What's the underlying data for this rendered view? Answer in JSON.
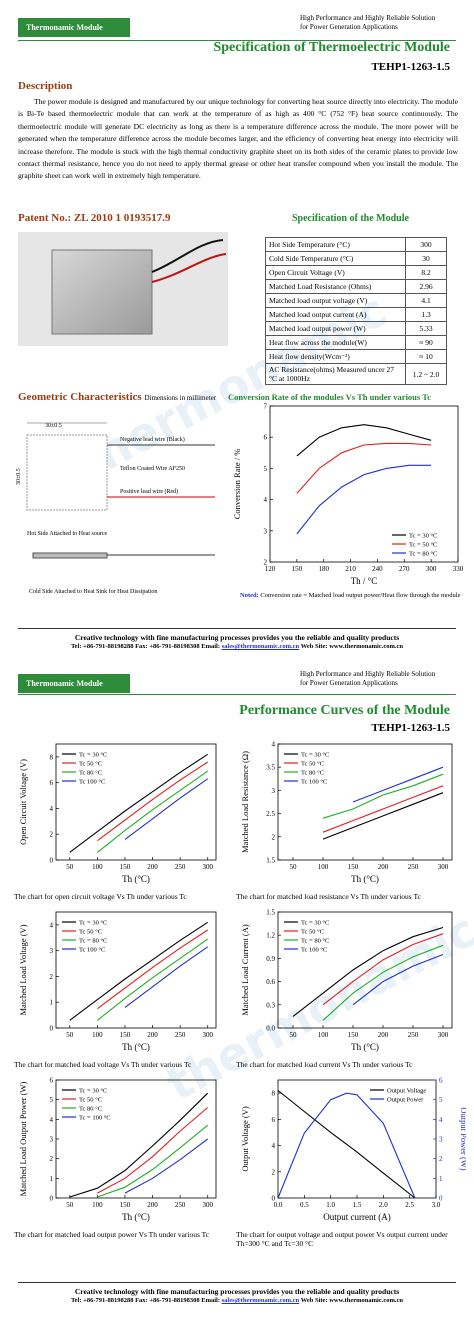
{
  "header": {
    "badge": "Thermonamic Module",
    "tagline_1": "High Performance and Highly Reliable Solution",
    "tagline_2": "for Power Generation Applications"
  },
  "watermark": "thermonamic",
  "page1": {
    "title": "Specification of Thermoelectric Module",
    "model": "TEHP1-1263-1.5",
    "description_heading": "Description",
    "description": "The power module is designed and manufactured by our unique technology for converting heat source directly into electricity. The module is Bi-Te based thermoelectric module that can work at the temperature of as high as 400 °C (752 °F) heat source continuously. The thermoelectric module will generate DC electricity as long as there is a temperature difference across the module. The more power will be generated when the temperature difference across the module becomes larger, and the efficiency of converting heat energy into electricity will increase therefore. The module is stuck with the high thermal conductivity graphite sheet on its both sides of the ceramic plates to provide low contact thermal resistance, hence you do not need to apply thermal grease or other heat transfer compound when you install the module. The graphite sheet can work well in extremely high temperature.",
    "patent": "Patent No.: ZL 2010 1 0193517.9",
    "spec_heading": "Specification of the Module",
    "spec_table": [
      [
        "Hot Side Temperature (°C)",
        "300"
      ],
      [
        "Cold Side Temperature (°C)",
        "30"
      ],
      [
        "Open Circuit Voltage (V)",
        "8.2"
      ],
      [
        "Matched Load Resistance (Ohms)",
        "2.96"
      ],
      [
        "Matched load output voltage (V)",
        "4.1"
      ],
      [
        "Matched load output current (A)",
        "1.3"
      ],
      [
        "Matched load output power (W)",
        "5.33"
      ],
      [
        "Heat flow across the module(W)",
        "≈ 90"
      ],
      [
        "Heat flow density(Wcm⁻²)",
        "≈ 10"
      ],
      [
        "AC Resistance(ohms) Measured uncer 27 °C at 1000Hz",
        "1.2 ~ 2.0"
      ]
    ],
    "geometry_heading": "Geometric Characteristics",
    "geometry_unit": "Dimensions in millimeter",
    "geometry": {
      "width": "30±0.5",
      "height": "30±0.5",
      "negative": "Negative lead wire (Black)",
      "wire": "Teflon Coated Wire AF250",
      "positive": "Positive lead wire (Red)",
      "hot": "Hot Side Attached to Heat source",
      "cold": "Cold Side Attached to Heat Sink for Heat Dissipation"
    },
    "note_label": "Noted:",
    "note": "Conversion rate = Matched load output power/Heat flow through the module"
  },
  "footer": {
    "slogan": "Creative technology with fine manufacturing processes provides you the reliable and quality products",
    "contact": "Tel: +86-791-88198288  Fax: +86-791-88198308  Email:",
    "email": "sales@thermonamic.com.cn",
    "web": "Web Site: www.thermonamic.com.cn"
  },
  "page2": {
    "title": "Performance Curves of the Module",
    "model": "TEHP1-1263-1.5"
  },
  "chart_data": [
    {
      "type": "line",
      "title": "Conversion Rate of the modules Vs Th under various Tc",
      "xlabel": "Th / °C",
      "ylabel": "Conversion Rate / %",
      "x": [
        150,
        175,
        200,
        225,
        250,
        275,
        300
      ],
      "xlim": [
        120,
        330
      ],
      "xticks": [
        120,
        150,
        180,
        210,
        240,
        270,
        300,
        330
      ],
      "ylim": [
        2,
        7
      ],
      "yticks": [
        2,
        3,
        4,
        5,
        6,
        7
      ],
      "legend": "lower right",
      "series": [
        {
          "name": "Tc = 30 °C",
          "color": "#000000",
          "values": [
            5.4,
            6.0,
            6.3,
            6.4,
            6.3,
            6.1,
            5.9
          ]
        },
        {
          "name": "Tc = 50 °C",
          "color": "#e02020",
          "values": [
            4.2,
            5.0,
            5.5,
            5.75,
            5.8,
            5.8,
            5.75
          ]
        },
        {
          "name": "Tc = 80 °C",
          "color": "#2030d0",
          "values": [
            2.9,
            3.8,
            4.4,
            4.8,
            5.0,
            5.1,
            5.1
          ]
        }
      ]
    },
    {
      "type": "line",
      "xlabel": "Th (°C)",
      "ylabel": "Open Circuit Voltage (V)",
      "caption": "The chart for open circuit voltage Vs Th under various Tc",
      "x": [
        50,
        100,
        150,
        200,
        250,
        300
      ],
      "xlim": [
        25,
        315
      ],
      "xticks": [
        50,
        100,
        150,
        200,
        250,
        300
      ],
      "ylim": [
        0,
        9
      ],
      "yticks": [
        0,
        2,
        4,
        6,
        8
      ],
      "legend": "upper left",
      "series": [
        {
          "name": "Tc = 30 °C",
          "color": "#000000",
          "values": [
            0.6,
            2.2,
            3.8,
            5.3,
            6.8,
            8.2
          ]
        },
        {
          "name": "Tc   50 °C",
          "color": "#e02020",
          "values": [
            null,
            1.5,
            3.1,
            4.7,
            6.2,
            7.6
          ]
        },
        {
          "name": "Tc   80 °C",
          "color": "#20b020",
          "values": [
            null,
            0.6,
            2.3,
            3.9,
            5.4,
            6.9
          ]
        },
        {
          "name": "Tc   100 °C",
          "color": "#2030d0",
          "values": [
            null,
            null,
            1.6,
            3.2,
            4.8,
            6.3
          ]
        }
      ]
    },
    {
      "type": "line",
      "xlabel": "Th (°C)",
      "ylabel": "Matched Load Resistance (Ω)",
      "caption": "The chart for matched load resistance Vs Th under various Tc",
      "x": [
        50,
        100,
        150,
        200,
        250,
        300
      ],
      "xlim": [
        25,
        315
      ],
      "xticks": [
        50,
        100,
        150,
        200,
        250,
        300
      ],
      "ylim": [
        1.5,
        4.0
      ],
      "yticks": [
        1.5,
        2.0,
        2.5,
        3.0,
        3.5,
        4.0
      ],
      "legend": "upper left",
      "series": [
        {
          "name": "Tc = 30 °C",
          "color": "#000000",
          "values": [
            null,
            1.95,
            2.2,
            2.45,
            2.7,
            2.95
          ]
        },
        {
          "name": "Tc   50 °C",
          "color": "#e02020",
          "values": [
            null,
            2.1,
            2.35,
            2.6,
            2.85,
            3.1
          ]
        },
        {
          "name": "Tc   80 °C",
          "color": "#20b020",
          "values": [
            null,
            2.4,
            2.6,
            2.9,
            3.1,
            3.35
          ]
        },
        {
          "name": "Tc   100 °C",
          "color": "#2030d0",
          "values": [
            null,
            null,
            2.75,
            3.0,
            3.25,
            3.5
          ]
        }
      ]
    },
    {
      "type": "line",
      "xlabel": "Th (°C)",
      "ylabel": "Matched Load Voltage (V)",
      "caption": "The chart for matched load voltage Vs Th under various Tc",
      "x": [
        50,
        100,
        150,
        200,
        250,
        300
      ],
      "xlim": [
        25,
        315
      ],
      "xticks": [
        50,
        100,
        150,
        200,
        250,
        300
      ],
      "ylim": [
        0,
        4.5
      ],
      "yticks": [
        0,
        1,
        2,
        3,
        4
      ],
      "legend": "upper left",
      "series": [
        {
          "name": "Tc = 30 °C",
          "color": "#000000",
          "values": [
            0.3,
            1.1,
            1.9,
            2.65,
            3.4,
            4.1
          ]
        },
        {
          "name": "Tc   50 °C",
          "color": "#e02020",
          "values": [
            null,
            0.75,
            1.55,
            2.35,
            3.1,
            3.8
          ]
        },
        {
          "name": "Tc = 80 °C",
          "color": "#20b020",
          "values": [
            null,
            0.3,
            1.15,
            1.95,
            2.7,
            3.45
          ]
        },
        {
          "name": "Tc   100 °C",
          "color": "#2030d0",
          "values": [
            null,
            null,
            0.8,
            1.6,
            2.4,
            3.15
          ]
        }
      ]
    },
    {
      "type": "line",
      "xlabel": "Th (°C)",
      "ylabel": "Matched Load Current (A)",
      "caption": "The chart for matched load current Vs Th under various Tc",
      "x": [
        50,
        100,
        150,
        200,
        250,
        300
      ],
      "xlim": [
        25,
        315
      ],
      "xticks": [
        50,
        100,
        150,
        200,
        250,
        300
      ],
      "ylim": [
        0,
        1.5
      ],
      "yticks": [
        {
          "value": 0,
          "label": "0.0"
        },
        0.3,
        0.6,
        0.9,
        1.2,
        1.5
      ],
      "legend": "upper left",
      "series": [
        {
          "name": "Tc = 30 °C",
          "color": "#000000",
          "values": [
            0.15,
            0.45,
            0.75,
            1.0,
            1.18,
            1.3
          ]
        },
        {
          "name": "Tc   50 °C",
          "color": "#e02020",
          "values": [
            null,
            0.3,
            0.6,
            0.88,
            1.08,
            1.22
          ]
        },
        {
          "name": "Tc = 80 °C",
          "color": "#20b020",
          "values": [
            null,
            0.1,
            0.45,
            0.72,
            0.92,
            1.07
          ]
        },
        {
          "name": "Tc   100 °C",
          "color": "#2030d0",
          "values": [
            null,
            null,
            0.3,
            0.6,
            0.8,
            0.95
          ]
        }
      ]
    },
    {
      "type": "line",
      "xlabel": "Th (°C)",
      "ylabel": "Matched Load Output Power (W)",
      "caption": "The chart for matched load output power Vs Th under various Tc",
      "x": [
        50,
        100,
        150,
        200,
        250,
        300
      ],
      "xlim": [
        25,
        315
      ],
      "xticks": [
        50,
        100,
        150,
        200,
        250,
        300
      ],
      "ylim": [
        0,
        6
      ],
      "yticks": [
        0,
        1,
        2,
        3,
        4,
        5,
        6
      ],
      "legend": "upper left",
      "series": [
        {
          "name": "Tc = 30 °C",
          "color": "#000000",
          "values": [
            0.05,
            0.5,
            1.4,
            2.65,
            3.95,
            5.33
          ]
        },
        {
          "name": "Tc   50 °C",
          "color": "#e02020",
          "values": [
            null,
            0.25,
            1.0,
            2.1,
            3.4,
            4.6
          ]
        },
        {
          "name": "Tc   80 °C",
          "color": "#20b020",
          "values": [
            null,
            0.05,
            0.55,
            1.45,
            2.55,
            3.7
          ]
        },
        {
          "name": "Tc = 100 °C",
          "color": "#2030d0",
          "values": [
            null,
            null,
            0.25,
            1.0,
            1.95,
            3.0
          ]
        }
      ]
    },
    {
      "type": "line",
      "xlabel": "Output current (A)",
      "ylabel": "Output Voltage (V)",
      "y2label": "Output Power (W)",
      "caption": "The chart for output voltage and output power Vs output current under Th=300 °C and Tc=30 °C",
      "x": [
        0,
        0.5,
        1.0,
        1.3,
        1.5,
        2.0,
        2.6
      ],
      "xlim": [
        0,
        3.0
      ],
      "xticks": [
        {
          "value": 0,
          "label": "0.0"
        },
        0.5,
        {
          "value": 1,
          "label": "1.0"
        },
        1.5,
        {
          "value": 2,
          "label": "2.0"
        },
        2.5,
        {
          "value": 3,
          "label": "3.0"
        }
      ],
      "ylim": [
        0,
        9
      ],
      "yticks": [
        0,
        2,
        4,
        6,
        8
      ],
      "y2lim": [
        0,
        6
      ],
      "y2ticks": [
        0,
        1,
        2,
        3,
        4,
        5,
        6
      ],
      "y2color": "#2030d0",
      "legend": "upper right",
      "series": [
        {
          "name": "Output Voltage",
          "color": "#000000",
          "values": [
            8.2,
            6.6,
            5.0,
            4.1,
            3.5,
            1.9,
            0
          ]
        },
        {
          "name": "Output Power",
          "color": "#2030d0",
          "axis": "y2",
          "values": [
            0,
            3.3,
            5.0,
            5.33,
            5.25,
            3.8,
            0
          ]
        }
      ]
    }
  ]
}
